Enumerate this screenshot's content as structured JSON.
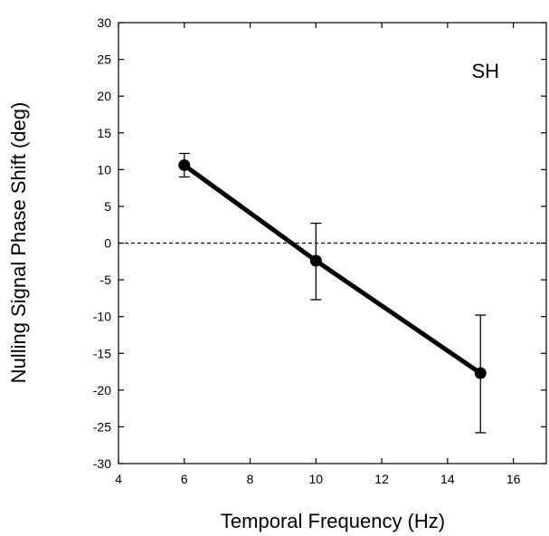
{
  "chart_data": {
    "type": "line",
    "title": "",
    "xlabel": "Temporal Frequency (Hz)",
    "ylabel": "Nulling Signal Phase Shift (deg)",
    "xlim": [
      4,
      17
    ],
    "ylim": [
      -30,
      30
    ],
    "x_ticks": [
      4,
      6,
      8,
      10,
      12,
      14,
      16
    ],
    "y_ticks": [
      30,
      25,
      20,
      15,
      10,
      5,
      0,
      -5,
      -10,
      -15,
      -20,
      -25,
      -30
    ],
    "annotation": "SH",
    "reference_line": {
      "y": 0,
      "style": "dashed"
    },
    "grid": false,
    "series": [
      {
        "x": [
          6,
          10,
          15
        ],
        "y": [
          10.6,
          -2.4,
          -17.7
        ],
        "err_low": [
          9.0,
          -7.7,
          -25.8
        ],
        "err_high": [
          12.2,
          2.7,
          -9.8
        ],
        "color": "#000000"
      }
    ]
  }
}
